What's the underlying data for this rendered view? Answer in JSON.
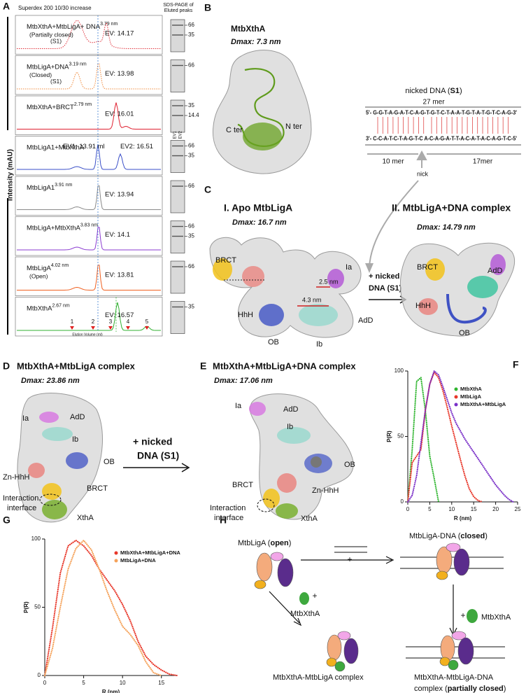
{
  "panel_labels": [
    "A",
    "B",
    "C",
    "D",
    "E",
    "F",
    "G",
    "H"
  ],
  "panel_a": {
    "column_title": "Superdex 200 10/30 increase",
    "gel_title": [
      "SDS-PAGE of",
      "Eluted peaks"
    ],
    "y_label": "Intensity (mAU)",
    "x_label": "Elution Volume (ml)",
    "peak_markers": [
      "1",
      "2",
      "3",
      "4",
      "5"
    ],
    "traces": [
      {
        "label": "MtbXthA+MtbLigA+ DNA",
        "size": "3.79 nm",
        "notes": [
          "(Partially closed)",
          "(S1)"
        ],
        "ev": [
          "EV: 14.17"
        ],
        "gel": [
          "66",
          "35"
        ],
        "color": "#e0303a"
      },
      {
        "label": "MtbLigA+DNA",
        "size": "3.19 nm",
        "notes": [
          "(Closed)",
          "(S1)"
        ],
        "ev": [
          "EV: 13.98"
        ],
        "gel": [
          "66"
        ],
        "color": "#f08a3c"
      },
      {
        "label": "MtbXthA+BRCT",
        "size": "2.79 nm",
        "notes": [],
        "ev": [
          "EV: 16.01"
        ],
        "gel": [
          "35",
          "14.4"
        ],
        "color": "#e02030"
      },
      {
        "label": "MtbLigA1+MtbXthA",
        "size": "",
        "notes": [],
        "ev": [
          "EV1: 13.91 ml",
          "EV2: 16.51"
        ],
        "gel": [
          "66",
          "35"
        ],
        "gel_lanes": [
          "EV1",
          "EV2"
        ],
        "color": "#3a4fc8"
      },
      {
        "label": "MtbLigA1",
        "size": "3.91 nm",
        "notes": [],
        "ev": [
          "EV: 13.94"
        ],
        "gel": [
          "66"
        ],
        "color": "#8a8a8a"
      },
      {
        "label": "MtbLigA+MtbXthA",
        "size": "3.83 nm",
        "notes": [],
        "ev": [
          "EV: 14.1"
        ],
        "gel": [
          "66",
          "35"
        ],
        "color": "#8a3ad0"
      },
      {
        "label": "MtbLigA",
        "size": "4.02 nm",
        "notes": [
          "(Open)"
        ],
        "ev": [
          "EV: 13.81"
        ],
        "gel": [
          "66"
        ],
        "color": "#f06020"
      },
      {
        "label": "MtbXthA",
        "size": "2.67 nm",
        "notes": [],
        "ev": [
          "EV: 16.57"
        ],
        "gel": [
          "35"
        ],
        "color": "#30b030"
      }
    ]
  },
  "panel_b": {
    "title": "MtbXthA",
    "dmax": "Dmax: 7.3 nm",
    "c_ter": "C ter",
    "n_ter": "N ter",
    "dna": {
      "title": [
        "nicked DNA (",
        "S1",
        ")"
      ],
      "length": "27 mer",
      "top_strand": "5'- G-G-T-A-G-A-T-C-A-G-T-G-T-C-T-A-A-T-G-T-A-T-G-T-C-A-G-3'",
      "bottom_strand": "3'- C-C-A-T-C-T-A-G-T-C   A-C-A-G-A-T-T-A-C-A-T-A-C-A-G-T-C-5'",
      "left_length": "10 mer",
      "nick": "nick",
      "right_length": "17mer"
    }
  },
  "panel_c": {
    "apo_title": "I. Apo MtbLigA",
    "apo_dmax": "Dmax: 16.7 nm",
    "apo_domains": [
      "BRCT",
      "HhH",
      "Ia",
      "OB",
      "Ib",
      "AdD"
    ],
    "distances": [
      "2.5 nm",
      "4.3 nm"
    ],
    "arrow_text": [
      "+ nicked",
      "DNA (S1)"
    ],
    "complex_title": "II. MtbLigA+DNA complex",
    "complex_dmax": "Dmax: 14.79 nm",
    "complex_domains": [
      "BRCT",
      "AdD",
      "HhH",
      "OB"
    ]
  },
  "panel_d": {
    "title": "MtbXthA+MtbLigA complex",
    "dmax": "Dmax: 23.86 nm",
    "domains": [
      "Ia",
      "AdD",
      "Ib",
      "OB",
      "Zn-HhH",
      "BRCT",
      "XthA"
    ],
    "interface": [
      "Interaction",
      "interface"
    ],
    "arrow_text": [
      "+ nicked",
      "DNA (S1)"
    ]
  },
  "panel_e": {
    "title": "MtbXthA+MtbLigA+DNA complex",
    "dmax": "Dmax: 17.06 nm",
    "domains": [
      "Ia",
      "AdD",
      "Ib",
      "OB",
      "BRCT",
      "Zn-HhH",
      "XthA"
    ],
    "interface": [
      "Interaction",
      "interface"
    ]
  },
  "panel_h": {
    "open": [
      "MtbLigA (",
      "open",
      ")"
    ],
    "closed": [
      "MtbLigA-DNA (",
      "closed",
      ")"
    ],
    "plus": "+",
    "xtha_left": "MtbXthA",
    "xtha_right": "MtbXthA",
    "complex_left": "MtbXthA-MtbLigA complex",
    "complex_right": [
      "MtbXthA-MtbLigA-DNA",
      "complex (",
      "partially closed",
      ")"
    ]
  },
  "chart_data": [
    {
      "type": "line",
      "x_label": "R (nm)",
      "y_label": "P(R)",
      "x": [
        0,
        1,
        2,
        3,
        4,
        5,
        6,
        7,
        8,
        9,
        10,
        11,
        12,
        13,
        14,
        15,
        16,
        17,
        18,
        19,
        20,
        21,
        22,
        23,
        24
      ],
      "series": [
        {
          "name": "MtbXthA",
          "color": "#2fb52f",
          "values": [
            0,
            40,
            92,
            95,
            70,
            35,
            18,
            0,
            null,
            null,
            null,
            null,
            null,
            null,
            null,
            null,
            null,
            null,
            null,
            null,
            null,
            null,
            null,
            null,
            null
          ]
        },
        {
          "name": "MtbLigA",
          "color": "#e8372a",
          "values": [
            0,
            30,
            35,
            40,
            70,
            90,
            99,
            95,
            85,
            72,
            58,
            45,
            32,
            20,
            10,
            4,
            1,
            0,
            null,
            null,
            null,
            null,
            null,
            null,
            null
          ]
        },
        {
          "name": "MtbXthA+MtbLigA",
          "color": "#7a30c8",
          "values": [
            0,
            5,
            20,
            45,
            70,
            90,
            100,
            97,
            88,
            78,
            68,
            60,
            54,
            48,
            43,
            38,
            33,
            28,
            23,
            18,
            13,
            9,
            5,
            2,
            0
          ]
        }
      ],
      "xlim": [
        0,
        25
      ],
      "ylim": [
        0,
        100
      ],
      "xticks": [
        0,
        5,
        10,
        15,
        20,
        25
      ],
      "yticks": [
        0,
        50,
        100
      ],
      "legend": "upper right"
    },
    {
      "type": "line",
      "x_label": "R (nm)",
      "y_label": "P(R)",
      "x": [
        0,
        1,
        2,
        3,
        4,
        5,
        6,
        7,
        8,
        9,
        10,
        11,
        12,
        13,
        14,
        15,
        16,
        17
      ],
      "series": [
        {
          "name": "MtbXthA+MtbLigA+DNA",
          "color": "#e8372a",
          "values": [
            0,
            35,
            75,
            95,
            99,
            95,
            88,
            78,
            70,
            62,
            52,
            40,
            25,
            14,
            8,
            4,
            1,
            0
          ]
        },
        {
          "name": "MtbLigA+DNA",
          "color": "#f5a25a",
          "values": [
            0,
            20,
            50,
            78,
            93,
            99,
            92,
            78,
            62,
            48,
            36,
            30,
            22,
            10,
            2,
            0,
            null,
            null
          ]
        }
      ],
      "xlim": [
        0,
        17
      ],
      "ylim": [
        0,
        100
      ],
      "xticks": [
        0,
        5,
        10,
        15
      ],
      "yticks": [
        0,
        50,
        100
      ],
      "legend": "upper right"
    }
  ]
}
